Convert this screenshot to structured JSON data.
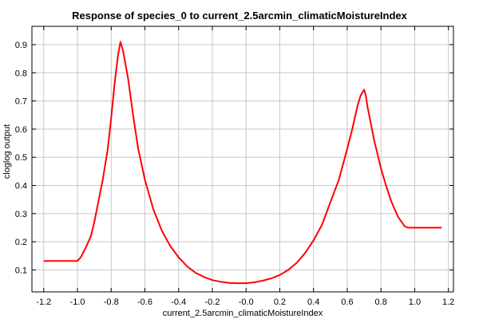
{
  "chart_data": {
    "type": "line",
    "title": "Response of species_0 to current_2.5arcmin_climaticMoistureIndex",
    "xlabel": "current_2.5arcmin_climaticMoistureIndex",
    "ylabel": "cloglog output",
    "xlim": [
      -1.27,
      1.23
    ],
    "ylim": [
      0.022,
      0.965
    ],
    "xticks": [
      -1.2,
      -1.0,
      -0.8,
      -0.6,
      -0.4,
      -0.2,
      0.0,
      0.2,
      0.4,
      0.6,
      0.8,
      1.0,
      1.2
    ],
    "xtick_labels": [
      "-1.2",
      "-1.0",
      "-0.8",
      "-0.6",
      "-0.4",
      "-0.2",
      "-0.0",
      "0.2",
      "0.4",
      "0.6",
      "0.8",
      "1.0",
      "1.2"
    ],
    "yticks": [
      0.1,
      0.2,
      0.3,
      0.4,
      0.5,
      0.6,
      0.7,
      0.8,
      0.9
    ],
    "ytick_labels": [
      "0.1",
      "0.2",
      "0.3",
      "0.4",
      "0.5",
      "0.6",
      "0.7",
      "0.8",
      "0.9"
    ],
    "grid": true,
    "series": [
      {
        "color": "#ff0000",
        "x": [
          -1.2,
          -1.0,
          -0.98,
          -0.95,
          -0.92,
          -0.9,
          -0.88,
          -0.85,
          -0.82,
          -0.8,
          -0.78,
          -0.76,
          -0.745,
          -0.73,
          -0.7,
          -0.67,
          -0.64,
          -0.6,
          -0.55,
          -0.5,
          -0.45,
          -0.4,
          -0.35,
          -0.3,
          -0.25,
          -0.2,
          -0.15,
          -0.1,
          -0.05,
          0.0,
          0.05,
          0.1,
          0.15,
          0.2,
          0.25,
          0.3,
          0.35,
          0.4,
          0.45,
          0.5,
          0.55,
          0.6,
          0.63,
          0.66,
          0.68,
          0.7,
          0.71,
          0.72,
          0.74,
          0.76,
          0.78,
          0.8,
          0.83,
          0.86,
          0.9,
          0.94,
          0.96,
          1.0,
          1.05,
          1.1,
          1.16
        ],
        "y": [
          0.132,
          0.132,
          0.145,
          0.18,
          0.22,
          0.27,
          0.33,
          0.42,
          0.53,
          0.64,
          0.76,
          0.86,
          0.91,
          0.88,
          0.78,
          0.65,
          0.53,
          0.42,
          0.315,
          0.24,
          0.185,
          0.145,
          0.113,
          0.09,
          0.075,
          0.064,
          0.058,
          0.054,
          0.053,
          0.053,
          0.056,
          0.062,
          0.07,
          0.082,
          0.1,
          0.125,
          0.16,
          0.205,
          0.26,
          0.34,
          0.42,
          0.53,
          0.6,
          0.68,
          0.72,
          0.74,
          0.72,
          0.68,
          0.62,
          0.56,
          0.51,
          0.46,
          0.4,
          0.345,
          0.29,
          0.255,
          0.25,
          0.25,
          0.25,
          0.25,
          0.25
        ]
      }
    ]
  }
}
